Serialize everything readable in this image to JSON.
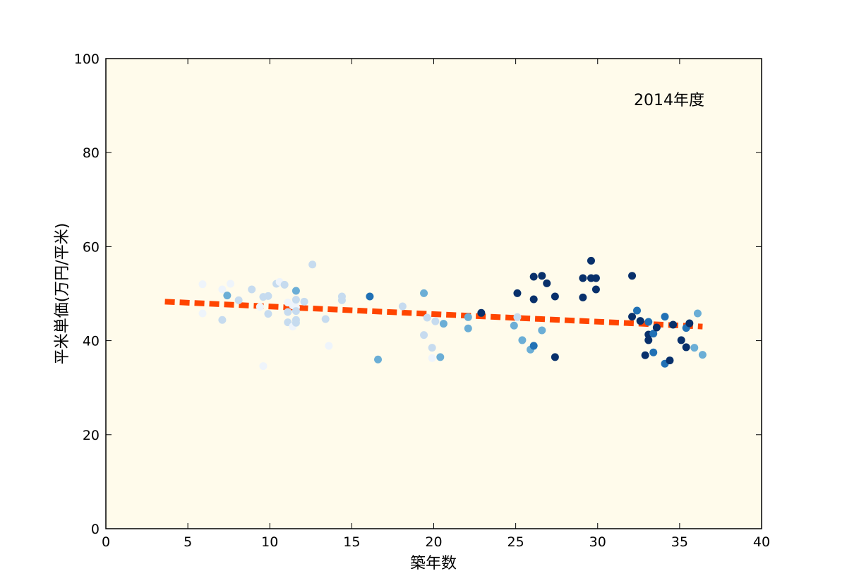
{
  "chart_data": {
    "type": "scatter",
    "title": "",
    "xlabel": "築年数",
    "ylabel": "平米単価(万円/平米)",
    "annotation": "2014年度",
    "xlim": [
      0,
      40
    ],
    "ylim": [
      0,
      100
    ],
    "xticks": [
      "0",
      "5",
      "10",
      "15",
      "20",
      "25",
      "30",
      "35",
      "40"
    ],
    "yticks": [
      "0",
      "20",
      "40",
      "60",
      "80",
      "100"
    ],
    "grid": false,
    "legend": "none",
    "background_color": "#fffbeb",
    "trendline": {
      "x": [
        3.6,
        36.4
      ],
      "y": [
        48.3,
        43.0
      ],
      "color": "#ff4500",
      "style": "dashed"
    },
    "colors": [
      "#eef4fb",
      "#c6dbef",
      "#6baed6",
      "#2171b5",
      "#08306b"
    ],
    "points": [
      {
        "x": 5.9,
        "y": 52.0,
        "c": 0
      },
      {
        "x": 5.9,
        "y": 45.8,
        "c": 0
      },
      {
        "x": 7.1,
        "y": 50.9,
        "c": 0
      },
      {
        "x": 7.1,
        "y": 44.4,
        "c": 1
      },
      {
        "x": 7.4,
        "y": 49.6,
        "c": 2
      },
      {
        "x": 7.6,
        "y": 52.1,
        "c": 0
      },
      {
        "x": 8.1,
        "y": 48.6,
        "c": 1
      },
      {
        "x": 8.9,
        "y": 50.9,
        "c": 1
      },
      {
        "x": 9.4,
        "y": 47.2,
        "c": 0
      },
      {
        "x": 9.6,
        "y": 49.3,
        "c": 1
      },
      {
        "x": 9.6,
        "y": 34.6,
        "c": 0
      },
      {
        "x": 9.9,
        "y": 49.5,
        "c": 1
      },
      {
        "x": 9.9,
        "y": 45.7,
        "c": 1
      },
      {
        "x": 10.4,
        "y": 52.1,
        "c": 1
      },
      {
        "x": 10.6,
        "y": 52.5,
        "c": 0
      },
      {
        "x": 10.9,
        "y": 51.9,
        "c": 1
      },
      {
        "x": 11.1,
        "y": 48.1,
        "c": 0
      },
      {
        "x": 11.1,
        "y": 46.1,
        "c": 1
      },
      {
        "x": 11.1,
        "y": 43.9,
        "c": 1
      },
      {
        "x": 11.4,
        "y": 47.5,
        "c": 0
      },
      {
        "x": 11.4,
        "y": 43.0,
        "c": 0
      },
      {
        "x": 11.6,
        "y": 50.6,
        "c": 2
      },
      {
        "x": 11.6,
        "y": 48.7,
        "c": 1
      },
      {
        "x": 11.6,
        "y": 47.1,
        "c": 0
      },
      {
        "x": 11.6,
        "y": 46.3,
        "c": 1
      },
      {
        "x": 11.6,
        "y": 44.4,
        "c": 1
      },
      {
        "x": 11.6,
        "y": 43.8,
        "c": 1
      },
      {
        "x": 12.1,
        "y": 48.3,
        "c": 1
      },
      {
        "x": 12.6,
        "y": 56.2,
        "c": 1
      },
      {
        "x": 13.4,
        "y": 44.6,
        "c": 1
      },
      {
        "x": 13.6,
        "y": 38.9,
        "c": 0
      },
      {
        "x": 14.4,
        "y": 49.4,
        "c": 1
      },
      {
        "x": 14.4,
        "y": 48.6,
        "c": 1
      },
      {
        "x": 16.1,
        "y": 49.4,
        "c": 3
      },
      {
        "x": 16.6,
        "y": 36.0,
        "c": 2
      },
      {
        "x": 18.1,
        "y": 47.3,
        "c": 1
      },
      {
        "x": 19.4,
        "y": 50.1,
        "c": 2
      },
      {
        "x": 19.4,
        "y": 41.2,
        "c": 1
      },
      {
        "x": 19.6,
        "y": 44.9,
        "c": 1
      },
      {
        "x": 19.9,
        "y": 38.5,
        "c": 1
      },
      {
        "x": 19.9,
        "y": 36.3,
        "c": 0
      },
      {
        "x": 20.1,
        "y": 44.1,
        "c": 1
      },
      {
        "x": 20.4,
        "y": 36.5,
        "c": 2
      },
      {
        "x": 20.6,
        "y": 43.6,
        "c": 2
      },
      {
        "x": 22.1,
        "y": 45.0,
        "c": 2
      },
      {
        "x": 22.1,
        "y": 42.6,
        "c": 2
      },
      {
        "x": 22.9,
        "y": 45.9,
        "c": 4
      },
      {
        "x": 24.9,
        "y": 43.2,
        "c": 2
      },
      {
        "x": 25.1,
        "y": 50.1,
        "c": 4
      },
      {
        "x": 25.1,
        "y": 45.0,
        "c": 1
      },
      {
        "x": 25.4,
        "y": 40.1,
        "c": 2
      },
      {
        "x": 25.9,
        "y": 38.1,
        "c": 2
      },
      {
        "x": 26.1,
        "y": 53.6,
        "c": 4
      },
      {
        "x": 26.1,
        "y": 48.8,
        "c": 4
      },
      {
        "x": 26.1,
        "y": 38.9,
        "c": 3
      },
      {
        "x": 26.6,
        "y": 53.8,
        "c": 4
      },
      {
        "x": 26.6,
        "y": 42.2,
        "c": 2
      },
      {
        "x": 26.9,
        "y": 52.2,
        "c": 4
      },
      {
        "x": 27.4,
        "y": 49.4,
        "c": 4
      },
      {
        "x": 27.4,
        "y": 36.5,
        "c": 4
      },
      {
        "x": 29.1,
        "y": 53.3,
        "c": 4
      },
      {
        "x": 29.1,
        "y": 49.2,
        "c": 4
      },
      {
        "x": 29.6,
        "y": 57.0,
        "c": 4
      },
      {
        "x": 29.6,
        "y": 53.3,
        "c": 4
      },
      {
        "x": 29.9,
        "y": 53.3,
        "c": 4
      },
      {
        "x": 29.9,
        "y": 50.9,
        "c": 4
      },
      {
        "x": 32.1,
        "y": 53.8,
        "c": 4
      },
      {
        "x": 32.1,
        "y": 45.1,
        "c": 4
      },
      {
        "x": 32.4,
        "y": 46.4,
        "c": 3
      },
      {
        "x": 32.6,
        "y": 44.2,
        "c": 4
      },
      {
        "x": 32.9,
        "y": 36.9,
        "c": 4
      },
      {
        "x": 33.1,
        "y": 44.0,
        "c": 3
      },
      {
        "x": 33.1,
        "y": 41.3,
        "c": 4
      },
      {
        "x": 33.1,
        "y": 40.1,
        "c": 4
      },
      {
        "x": 33.4,
        "y": 41.5,
        "c": 3
      },
      {
        "x": 33.4,
        "y": 37.5,
        "c": 3
      },
      {
        "x": 33.6,
        "y": 42.8,
        "c": 4
      },
      {
        "x": 34.1,
        "y": 45.1,
        "c": 3
      },
      {
        "x": 34.1,
        "y": 35.1,
        "c": 3
      },
      {
        "x": 34.4,
        "y": 35.8,
        "c": 4
      },
      {
        "x": 34.6,
        "y": 43.4,
        "c": 4
      },
      {
        "x": 35.1,
        "y": 40.1,
        "c": 4
      },
      {
        "x": 35.4,
        "y": 42.7,
        "c": 3
      },
      {
        "x": 35.4,
        "y": 38.6,
        "c": 4
      },
      {
        "x": 35.6,
        "y": 43.7,
        "c": 4
      },
      {
        "x": 35.9,
        "y": 38.5,
        "c": 2
      },
      {
        "x": 36.1,
        "y": 45.8,
        "c": 2
      },
      {
        "x": 36.4,
        "y": 37.0,
        "c": 2
      }
    ]
  }
}
